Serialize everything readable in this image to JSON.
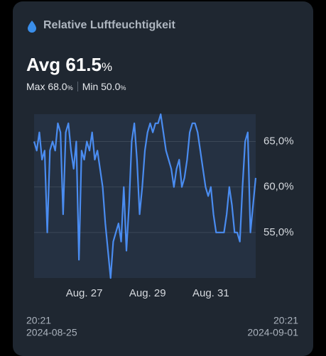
{
  "summary": {
    "avg_label": "Avg",
    "avg": "61.5",
    "avg_unit": "%",
    "max_label": "Max",
    "max": "68.0",
    "max_unit": "%",
    "min_label": "Min",
    "min": "50.0",
    "min_unit": "%"
  },
  "chart_data": {
    "type": "line",
    "title": "Relative Luftfeuchtigkeit",
    "series": [
      {
        "name": "Relative Luftfeuchtigkeit",
        "color": "#4a8cf0",
        "values": [
          65,
          64,
          66,
          63,
          64,
          55,
          64,
          65,
          64,
          67,
          66,
          57,
          66,
          67,
          64,
          62,
          65,
          52,
          64,
          63,
          65,
          64,
          66,
          63,
          64,
          62,
          60,
          56,
          53,
          50,
          54,
          55,
          56,
          54,
          60,
          53,
          58,
          65,
          67,
          63,
          57,
          60,
          64,
          66,
          67,
          66,
          67,
          67,
          68,
          66,
          64,
          63,
          62,
          60,
          62,
          63,
          60,
          61,
          63,
          66,
          67,
          67,
          66,
          64,
          62,
          60,
          59,
          60,
          57,
          55,
          55,
          55,
          55,
          57,
          60,
          58,
          55,
          55,
          54,
          60,
          65,
          66,
          55,
          58,
          61
        ]
      }
    ],
    "xticks": [
      {
        "value": 19,
        "label": "Aug. 27"
      },
      {
        "value": 43,
        "label": "Aug. 29"
      },
      {
        "value": 67,
        "label": "Aug. 31"
      }
    ],
    "ylim": [
      50,
      68
    ],
    "yticks": [
      {
        "value": 55,
        "label": "55,0%"
      },
      {
        "value": 60,
        "label": "60,0%"
      },
      {
        "value": 65,
        "label": "65,0%"
      }
    ],
    "grid": true,
    "range_start": {
      "time": "20:21",
      "date": "2024-08-25"
    },
    "range_end": {
      "time": "20:21",
      "date": "2024-09-01"
    }
  }
}
